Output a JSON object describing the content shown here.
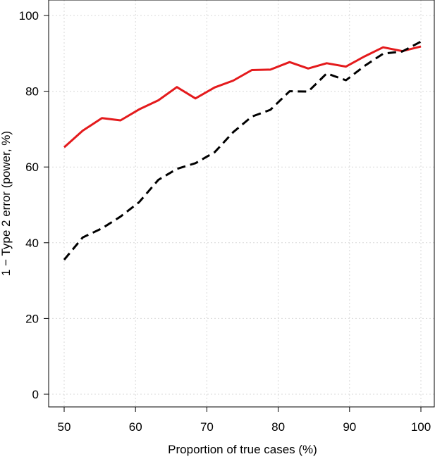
{
  "chart_data": {
    "type": "line",
    "title": "",
    "xlabel": "Proportion of true cases (%)",
    "ylabel": "1 − Type 2 error (power, %)",
    "xlim": [
      50,
      100
    ],
    "ylim": [
      0,
      100
    ],
    "xticks": [
      50,
      60,
      70,
      80,
      90,
      100
    ],
    "yticks": [
      0,
      20,
      40,
      60,
      80,
      100
    ],
    "grid": true,
    "series": [
      {
        "color": "#e41a1c",
        "style": "solid",
        "x": [
          50,
          52.6,
          55.3,
          57.9,
          60.5,
          63.2,
          65.8,
          68.4,
          71.1,
          73.7,
          76.3,
          78.9,
          81.6,
          84.2,
          86.8,
          89.5,
          92.1,
          94.7,
          97.4,
          100
        ],
        "y": [
          65.2,
          69.6,
          72.9,
          72.3,
          75.2,
          77.6,
          81.1,
          78.1,
          81.0,
          82.8,
          85.6,
          85.7,
          87.7,
          86.0,
          87.4,
          86.5,
          89.2,
          91.6,
          90.6,
          91.8
        ]
      },
      {
        "color": "#000000",
        "style": "dashed",
        "x": [
          50,
          52.6,
          55.3,
          57.9,
          60.5,
          63.2,
          65.8,
          68.4,
          71.1,
          73.7,
          76.3,
          78.9,
          81.6,
          84.2,
          86.8,
          89.5,
          92.1,
          94.7,
          97.4,
          100
        ],
        "y": [
          35.5,
          41.4,
          43.8,
          46.9,
          50.7,
          56.6,
          59.5,
          61.0,
          63.9,
          69.2,
          73.3,
          75.1,
          80.0,
          79.9,
          84.7,
          82.9,
          86.7,
          89.9,
          90.5,
          93.1
        ]
      }
    ]
  }
}
